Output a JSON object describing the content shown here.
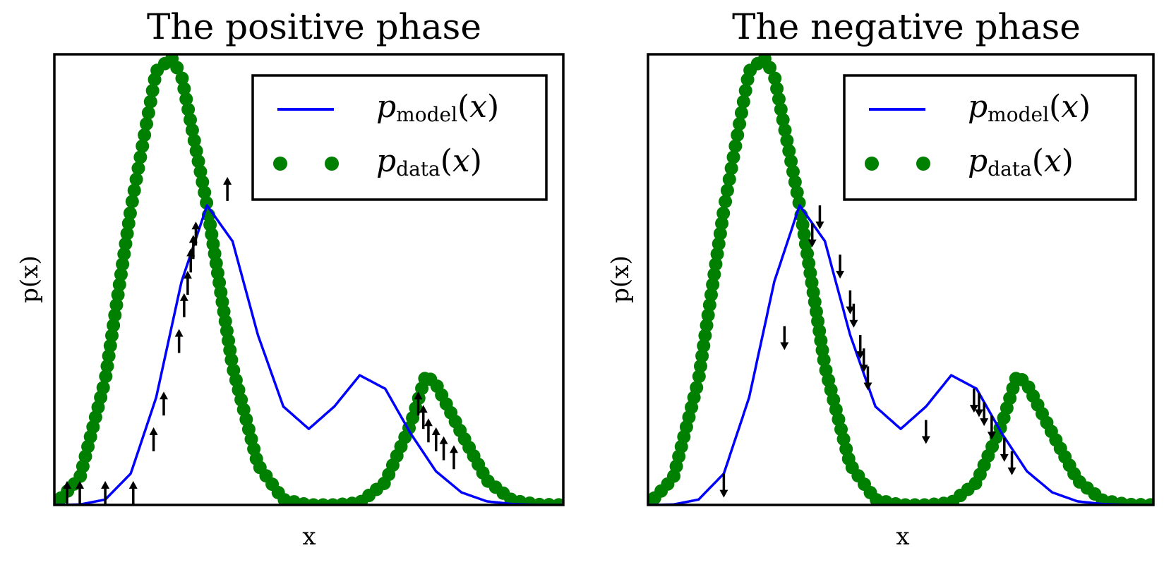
{
  "chart_data": [
    {
      "type": "line",
      "title": "The positive phase",
      "xlabel": "x",
      "ylabel": "p(x)",
      "xlim": [
        0,
        10
      ],
      "ylim": [
        0,
        1.0
      ],
      "ticks": "none",
      "grid": false,
      "legend_position": "top-right",
      "series": [
        {
          "name": "p_model(x)",
          "style": "solid-line",
          "color": "#0000ff",
          "x": [
            0.0,
            0.5,
            1.0,
            1.5,
            2.0,
            2.5,
            3.0,
            3.5,
            4.0,
            4.5,
            5.0,
            5.5,
            6.0,
            6.5,
            7.0,
            7.5,
            8.0,
            8.5,
            9.0,
            9.5,
            10.0
          ],
          "y": [
            0.0,
            0.001,
            0.012,
            0.07,
            0.24,
            0.5,
            0.67,
            0.59,
            0.38,
            0.22,
            0.17,
            0.22,
            0.29,
            0.26,
            0.16,
            0.075,
            0.028,
            0.008,
            0.002,
            0.0,
            0.0
          ]
        },
        {
          "name": "p_data(x)",
          "style": "dotted-markers",
          "color": "#008000",
          "x": [
            0.0,
            0.5,
            1.0,
            1.5,
            2.0,
            2.3,
            2.5,
            3.0,
            3.5,
            4.0,
            4.5,
            5.0,
            5.5,
            6.0,
            6.5,
            7.0,
            7.3,
            7.5,
            8.0,
            8.5,
            9.0,
            9.5,
            10.0
          ],
          "y": [
            0.0,
            0.06,
            0.28,
            0.66,
            0.97,
            1.0,
            0.96,
            0.67,
            0.31,
            0.09,
            0.012,
            0.0,
            0.0,
            0.005,
            0.05,
            0.18,
            0.29,
            0.27,
            0.16,
            0.055,
            0.01,
            0.001,
            0.0
          ]
        }
      ],
      "arrows": {
        "direction": "up",
        "color": "#000000",
        "points": [
          {
            "x": 0.25,
            "y": 0.0
          },
          {
            "x": 0.5,
            "y": 0.0
          },
          {
            "x": 1.0,
            "y": 0.0
          },
          {
            "x": 1.55,
            "y": 0.0
          },
          {
            "x": 1.95,
            "y": 0.12
          },
          {
            "x": 2.15,
            "y": 0.2
          },
          {
            "x": 2.45,
            "y": 0.34
          },
          {
            "x": 2.55,
            "y": 0.42
          },
          {
            "x": 2.62,
            "y": 0.47
          },
          {
            "x": 2.68,
            "y": 0.52
          },
          {
            "x": 2.73,
            "y": 0.55
          },
          {
            "x": 2.78,
            "y": 0.58
          },
          {
            "x": 3.4,
            "y": 0.68
          },
          {
            "x": 7.15,
            "y": 0.2
          },
          {
            "x": 7.25,
            "y": 0.17
          },
          {
            "x": 7.35,
            "y": 0.14
          },
          {
            "x": 7.5,
            "y": 0.12
          },
          {
            "x": 7.65,
            "y": 0.1
          },
          {
            "x": 7.85,
            "y": 0.08
          }
        ]
      }
    },
    {
      "type": "line",
      "title": "The negative phase",
      "xlabel": "x",
      "ylabel": "p(x)",
      "xlim": [
        0,
        10
      ],
      "ylim": [
        0,
        1.0
      ],
      "ticks": "none",
      "grid": false,
      "legend_position": "top-right",
      "series": [
        {
          "name": "p_model(x)",
          "style": "solid-line",
          "color": "#0000ff",
          "x": [
            0.0,
            0.5,
            1.0,
            1.5,
            2.0,
            2.5,
            3.0,
            3.5,
            4.0,
            4.5,
            5.0,
            5.5,
            6.0,
            6.5,
            7.0,
            7.5,
            8.0,
            8.5,
            9.0,
            9.5,
            10.0
          ],
          "y": [
            0.0,
            0.001,
            0.012,
            0.07,
            0.24,
            0.5,
            0.67,
            0.59,
            0.38,
            0.22,
            0.17,
            0.22,
            0.29,
            0.26,
            0.16,
            0.075,
            0.028,
            0.008,
            0.002,
            0.0,
            0.0
          ]
        },
        {
          "name": "p_data(x)",
          "style": "dotted-markers",
          "color": "#008000",
          "x": [
            0.0,
            0.5,
            1.0,
            1.5,
            2.0,
            2.3,
            2.5,
            3.0,
            3.5,
            4.0,
            4.5,
            5.0,
            5.5,
            6.0,
            6.5,
            7.0,
            7.3,
            7.5,
            8.0,
            8.5,
            9.0,
            9.5,
            10.0
          ],
          "y": [
            0.0,
            0.06,
            0.28,
            0.66,
            0.97,
            1.0,
            0.96,
            0.67,
            0.31,
            0.09,
            0.012,
            0.0,
            0.0,
            0.005,
            0.05,
            0.18,
            0.29,
            0.27,
            0.16,
            0.055,
            0.01,
            0.001,
            0.0
          ]
        }
      ],
      "arrows": {
        "direction": "down",
        "color": "#000000",
        "points": [
          {
            "x": 1.5,
            "y": 0.07
          },
          {
            "x": 2.7,
            "y": 0.4
          },
          {
            "x": 3.25,
            "y": 0.63
          },
          {
            "x": 3.4,
            "y": 0.67
          },
          {
            "x": 3.8,
            "y": 0.56
          },
          {
            "x": 4.0,
            "y": 0.48
          },
          {
            "x": 4.07,
            "y": 0.45
          },
          {
            "x": 4.2,
            "y": 0.38
          },
          {
            "x": 4.27,
            "y": 0.35
          },
          {
            "x": 4.35,
            "y": 0.31
          },
          {
            "x": 5.5,
            "y": 0.19
          },
          {
            "x": 6.45,
            "y": 0.26
          },
          {
            "x": 6.55,
            "y": 0.25
          },
          {
            "x": 6.65,
            "y": 0.23
          },
          {
            "x": 6.8,
            "y": 0.2
          },
          {
            "x": 7.05,
            "y": 0.15
          },
          {
            "x": 7.2,
            "y": 0.12
          }
        ]
      }
    }
  ]
}
